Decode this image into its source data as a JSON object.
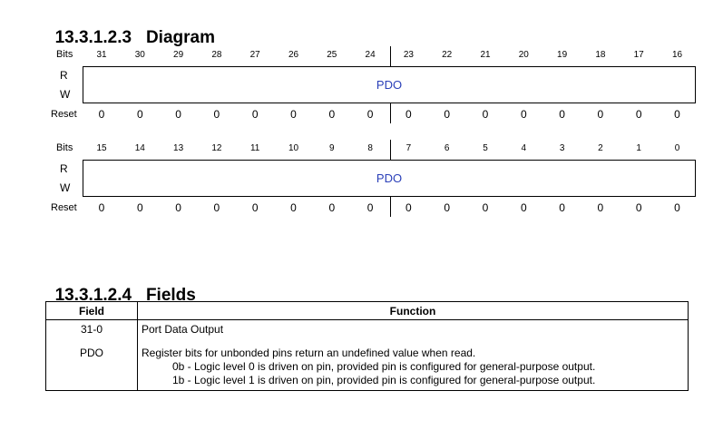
{
  "diagram_heading": {
    "number": "13.3.1.2.3",
    "title": "Diagram"
  },
  "fields_heading": {
    "number": "13.3.1.2.4",
    "title": "Fields"
  },
  "labels": {
    "bits": "Bits",
    "r": "R",
    "w": "W",
    "reset": "Reset"
  },
  "upper": {
    "bits": [
      "31",
      "30",
      "29",
      "28",
      "27",
      "26",
      "25",
      "24",
      "23",
      "22",
      "21",
      "20",
      "19",
      "18",
      "17",
      "16"
    ],
    "field": "PDO",
    "reset": [
      "0",
      "0",
      "0",
      "0",
      "0",
      "0",
      "0",
      "0",
      "0",
      "0",
      "0",
      "0",
      "0",
      "0",
      "0",
      "0"
    ]
  },
  "lower": {
    "bits": [
      "15",
      "14",
      "13",
      "12",
      "11",
      "10",
      "9",
      "8",
      "7",
      "6",
      "5",
      "4",
      "3",
      "2",
      "1",
      "0"
    ],
    "field": "PDO",
    "reset": [
      "0",
      "0",
      "0",
      "0",
      "0",
      "0",
      "0",
      "0",
      "0",
      "0",
      "0",
      "0",
      "0",
      "0",
      "0",
      "0"
    ]
  },
  "table": {
    "headers": {
      "field": "Field",
      "function": "Function"
    },
    "row1": {
      "field": "31-0",
      "function": "Port Data Output"
    },
    "row2": {
      "field": "PDO",
      "line1": "Register bits for unbonded pins return an undefined value when read.",
      "line2": "0b - Logic level 0 is driven on pin, provided pin is configured for general-purpose output.",
      "line3": "1b - Logic level 1 is driven on pin, provided pin is configured for general-purpose output."
    }
  }
}
